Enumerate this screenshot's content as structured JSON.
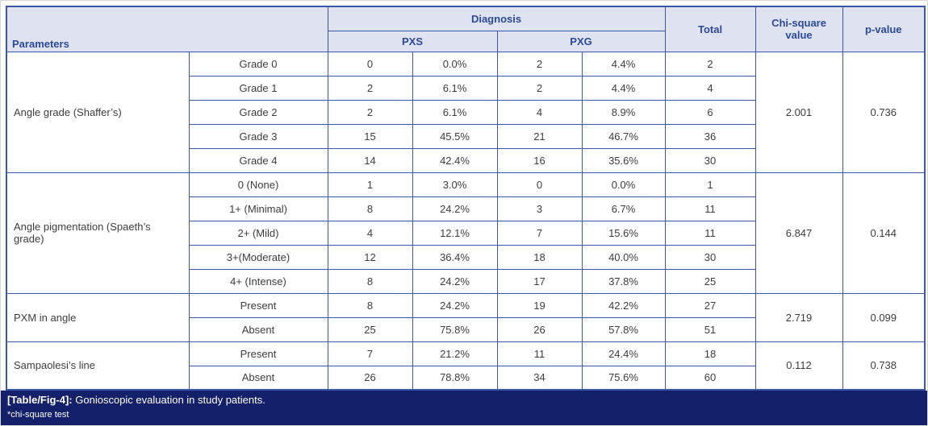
{
  "colors": {
    "border_blue": "#3b57a8",
    "header_bg": "#dfe2f0",
    "header_text": "#2b4a9b",
    "body_text": "#3d3d3d",
    "caption_bg": "#14206a",
    "caption_text": "#ffffff"
  },
  "table": {
    "header": {
      "parameters": "Parameters",
      "diagnosis": "Diagnosis",
      "pxs": "PXS",
      "pxg": "PXG",
      "total": "Total",
      "chi_square": "Chi-square value",
      "p_value": "p-value"
    },
    "groups": [
      {
        "parameter": "Angle grade (Shaffer’s)",
        "chi_square": "2.001",
        "p_value": "0.736",
        "rows": [
          {
            "label": "Grade 0",
            "pxs_n": "0",
            "pxs_pct": "0.0%",
            "pxg_n": "2",
            "pxg_pct": "4.4%",
            "total": "2"
          },
          {
            "label": "Grade 1",
            "pxs_n": "2",
            "pxs_pct": "6.1%",
            "pxg_n": "2",
            "pxg_pct": "4.4%",
            "total": "4"
          },
          {
            "label": "Grade 2",
            "pxs_n": "2",
            "pxs_pct": "6.1%",
            "pxg_n": "4",
            "pxg_pct": "8.9%",
            "total": "6"
          },
          {
            "label": "Grade 3",
            "pxs_n": "15",
            "pxs_pct": "45.5%",
            "pxg_n": "21",
            "pxg_pct": "46.7%",
            "total": "36"
          },
          {
            "label": "Grade 4",
            "pxs_n": "14",
            "pxs_pct": "42.4%",
            "pxg_n": "16",
            "pxg_pct": "35.6%",
            "total": "30"
          }
        ]
      },
      {
        "parameter": "Angle pigmentation (Spaeth’s grade)",
        "chi_square": "6.847",
        "p_value": "0.144",
        "rows": [
          {
            "label": "0 (None)",
            "pxs_n": "1",
            "pxs_pct": "3.0%",
            "pxg_n": "0",
            "pxg_pct": "0.0%",
            "total": "1"
          },
          {
            "label": "1+ (Minimal)",
            "pxs_n": "8",
            "pxs_pct": "24.2%",
            "pxg_n": "3",
            "pxg_pct": "6.7%",
            "total": "11"
          },
          {
            "label": "2+ (Mild)",
            "pxs_n": "4",
            "pxs_pct": "12.1%",
            "pxg_n": "7",
            "pxg_pct": "15.6%",
            "total": "11"
          },
          {
            "label": "3+(Moderate)",
            "pxs_n": "12",
            "pxs_pct": "36.4%",
            "pxg_n": "18",
            "pxg_pct": "40.0%",
            "total": "30"
          },
          {
            "label": "4+ (Intense)",
            "pxs_n": "8",
            "pxs_pct": "24.2%",
            "pxg_n": "17",
            "pxg_pct": "37.8%",
            "total": "25"
          }
        ]
      },
      {
        "parameter": "PXM in angle",
        "chi_square": "2.719",
        "p_value": "0.099",
        "rows": [
          {
            "label": "Present",
            "pxs_n": "8",
            "pxs_pct": "24.2%",
            "pxg_n": "19",
            "pxg_pct": "42.2%",
            "total": "27"
          },
          {
            "label": "Absent",
            "pxs_n": "25",
            "pxs_pct": "75.8%",
            "pxg_n": "26",
            "pxg_pct": "57.8%",
            "total": "51"
          }
        ]
      },
      {
        "parameter": "Sampaolesi’s line",
        "chi_square": "0.112",
        "p_value": "0.738",
        "rows": [
          {
            "label": "Present",
            "pxs_n": "7",
            "pxs_pct": "21.2%",
            "pxg_n": "11",
            "pxg_pct": "24.4%",
            "total": "18"
          },
          {
            "label": "Absent",
            "pxs_n": "26",
            "pxs_pct": "78.8%",
            "pxg_n": "34",
            "pxg_pct": "75.6%",
            "total": "60"
          }
        ]
      }
    ]
  },
  "caption": {
    "label": "[Table/Fig-4]:",
    "text": " Gonioscopic evaluation in study patients.",
    "footnote": "*chi-square test"
  }
}
